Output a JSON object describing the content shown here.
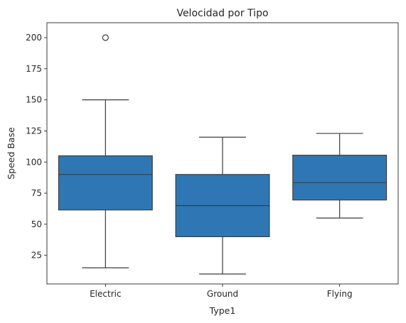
{
  "chart_data": {
    "type": "boxplot",
    "title": "Velocidad por Tipo",
    "xlabel": "Type1",
    "ylabel": "Speed Base",
    "ylim": [
      2,
      212
    ],
    "yticks": [
      25,
      50,
      75,
      100,
      125,
      150,
      175,
      200
    ],
    "grid": false,
    "box_color": "#2f77b4",
    "line_color": "#3d3d3d",
    "categories": [
      "Electric",
      "Ground",
      "Flying"
    ],
    "boxes": [
      {
        "category": "Electric",
        "whisker_low": 15,
        "q1": 61.5,
        "median": 90,
        "q3": 105,
        "whisker_high": 150,
        "outliers": [
          200
        ]
      },
      {
        "category": "Ground",
        "whisker_low": 10,
        "q1": 40,
        "median": 65,
        "q3": 90,
        "whisker_high": 120,
        "outliers": []
      },
      {
        "category": "Flying",
        "whisker_low": 55,
        "q1": 69.5,
        "median": 83.5,
        "q3": 105.5,
        "whisker_high": 123,
        "outliers": []
      }
    ]
  }
}
